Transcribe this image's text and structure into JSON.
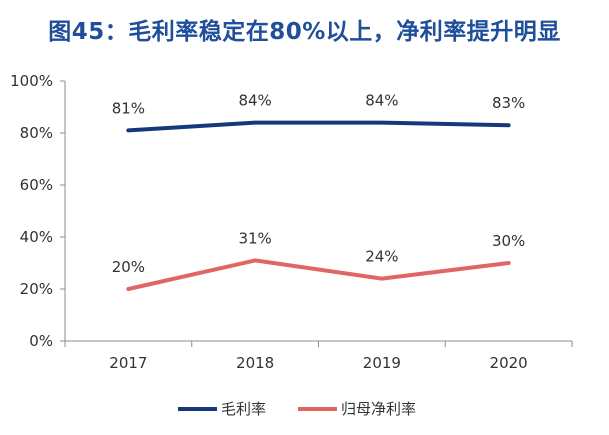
{
  "title": "图45：毛利率稳定在80%以上，净利率提升明显",
  "chart_data": {
    "type": "line",
    "title": "图45：毛利率稳定在80%以上，净利率提升明显",
    "categories": [
      "2017",
      "2018",
      "2019",
      "2020"
    ],
    "series": [
      {
        "name": "毛利率",
        "values": [
          81,
          84,
          84,
          83
        ],
        "labels": [
          "81%",
          "84%",
          "84%",
          "83%"
        ],
        "color": "#16377a"
      },
      {
        "name": "归母净利率",
        "values": [
          20,
          31,
          24,
          30
        ],
        "labels": [
          "20%",
          "31%",
          "24%",
          "30%"
        ],
        "color": "#e06666"
      }
    ],
    "y_ticks": [
      "0%",
      "20%",
      "40%",
      "60%",
      "80%",
      "100%"
    ],
    "ylim": [
      0,
      100
    ],
    "grid": false,
    "legend": "bottom",
    "xlabel": "",
    "ylabel": ""
  }
}
